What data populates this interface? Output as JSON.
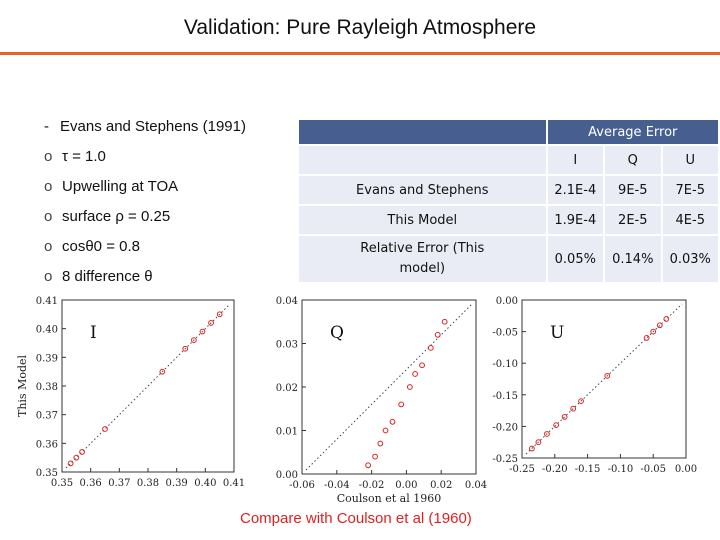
{
  "slide": {
    "title": "Validation: Pure Rayleigh Atmosphere",
    "accent_color": "#e8622a",
    "caption": "Compare with Coulson et al (1960)"
  },
  "bullets": [
    {
      "marker": "-",
      "text": "Evans and Stephens (1991)"
    },
    {
      "marker": "o",
      "text": "τ = 1.0"
    },
    {
      "marker": "o",
      "text": "Upwelling at TOA"
    },
    {
      "marker": "o",
      "text": "surface ρ = 0.25"
    },
    {
      "marker": "o",
      "text": "cosθ0 = 0.8"
    },
    {
      "marker": "o",
      "text": "8 difference θ"
    }
  ],
  "table": {
    "header_title": "Average Error",
    "columns": [
      "I",
      "Q",
      "U"
    ],
    "rows": [
      {
        "label": "Evans and Stephens",
        "values": [
          "2.1E-4",
          "9E-5",
          "7E-5"
        ]
      },
      {
        "label": "This Model",
        "values": [
          "1.9E-4",
          "2E-5",
          "4E-5"
        ]
      },
      {
        "label": "Relative Error (This model)",
        "values": [
          "0.05%",
          "0.14%",
          "0.03%"
        ]
      }
    ]
  },
  "chart_data": [
    {
      "type": "scatter",
      "title": "I",
      "xlabel": "",
      "ylabel": "This Model",
      "xlim": [
        0.35,
        0.41
      ],
      "ylim": [
        0.35,
        0.41
      ],
      "xticks": [
        "0.35",
        "0.36",
        "0.37",
        "0.38",
        "0.39",
        "0.40",
        "0.41"
      ],
      "yticks": [
        "0.35",
        "0.36",
        "0.37",
        "0.38",
        "0.39",
        "0.40",
        "0.41"
      ],
      "points": [
        [
          0.353,
          0.353
        ],
        [
          0.355,
          0.355
        ],
        [
          0.357,
          0.357
        ],
        [
          0.365,
          0.365
        ],
        [
          0.385,
          0.385
        ],
        [
          0.393,
          0.393
        ],
        [
          0.396,
          0.396
        ],
        [
          0.399,
          0.399
        ],
        [
          0.402,
          0.402
        ],
        [
          0.405,
          0.405
        ]
      ]
    },
    {
      "type": "scatter",
      "title": "Q",
      "xlabel": "Coulson et al 1960",
      "ylabel": "",
      "xlim": [
        -0.06,
        0.04
      ],
      "ylim": [
        0.0,
        0.04
      ],
      "xticks": [
        "-0.06",
        "-0.04",
        "-0.02",
        "0.00",
        "0.02",
        "0.04"
      ],
      "yticks": [
        "0.00",
        "0.01",
        "0.02",
        "0.03",
        "0.04"
      ],
      "points": [
        [
          -0.022,
          0.002
        ],
        [
          -0.018,
          0.004
        ],
        [
          -0.015,
          0.007
        ],
        [
          -0.012,
          0.01
        ],
        [
          -0.008,
          0.012
        ],
        [
          -0.003,
          0.016
        ],
        [
          0.002,
          0.02
        ],
        [
          0.005,
          0.023
        ],
        [
          0.009,
          0.025
        ],
        [
          0.014,
          0.029
        ],
        [
          0.018,
          0.032
        ],
        [
          0.022,
          0.035
        ]
      ]
    },
    {
      "type": "scatter",
      "title": "U",
      "xlabel": "",
      "ylabel": "",
      "xlim": [
        -0.25,
        0.0
      ],
      "ylim": [
        -0.25,
        0.0
      ],
      "xticks": [
        "-0.25",
        "-0.20",
        "-0.15",
        "-0.10",
        "-0.05",
        "0.00"
      ],
      "yticks": [
        "-0.25",
        "-0.20",
        "-0.15",
        "-0.10",
        "-0.05",
        "0.00"
      ],
      "points": [
        [
          -0.235,
          -0.235
        ],
        [
          -0.225,
          -0.225
        ],
        [
          -0.212,
          -0.212
        ],
        [
          -0.198,
          -0.198
        ],
        [
          -0.185,
          -0.185
        ],
        [
          -0.172,
          -0.172
        ],
        [
          -0.16,
          -0.16
        ],
        [
          -0.12,
          -0.12
        ],
        [
          -0.06,
          -0.06
        ],
        [
          -0.05,
          -0.05
        ],
        [
          -0.04,
          -0.04
        ],
        [
          -0.03,
          -0.03
        ]
      ]
    }
  ]
}
